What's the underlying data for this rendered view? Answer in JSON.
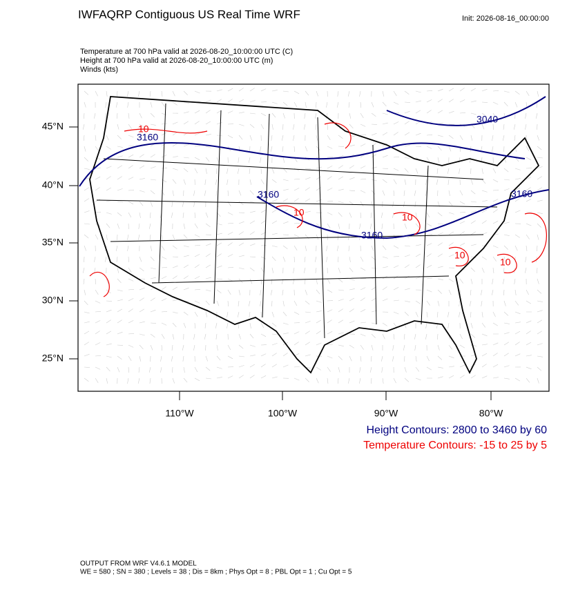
{
  "header": {
    "title": "IWFAQRP Contiguous US Real Time WRF",
    "init": "Init: 2026-08-16_00:00:00",
    "fields": [
      "Temperature at 700 hPa valid at 2026-08-20_10:00:00 UTC   (C)",
      "Height at 700 hPa valid at 2026-08-20_10:00:00 UTC   (m)",
      "Winds   (kts)"
    ]
  },
  "map": {
    "lat_labels": [
      "45°N",
      "40°N",
      "35°N",
      "30°N",
      "25°N"
    ],
    "lon_labels": [
      "110°W",
      "100°W",
      "90°W",
      "80°W"
    ],
    "height_labels": [
      "3160",
      "3160",
      "3160",
      "3160",
      "3040"
    ],
    "temperature_labels": [
      "10",
      "10",
      "10",
      "10",
      "10"
    ]
  },
  "legend": {
    "height": "Height Contours: 2800 to 3460 by 60",
    "temperature": "Temperature Contours: -15 to 25 by 5"
  },
  "footer": {
    "model": "OUTPUT FROM WRF V4.6.1 MODEL",
    "settings": "WE = 580 ; SN = 380 ; Levels = 38 ; Dis = 8km ; Phys Opt = 8 ; PBL Opt = 1 ; Cu Opt = 5"
  }
}
